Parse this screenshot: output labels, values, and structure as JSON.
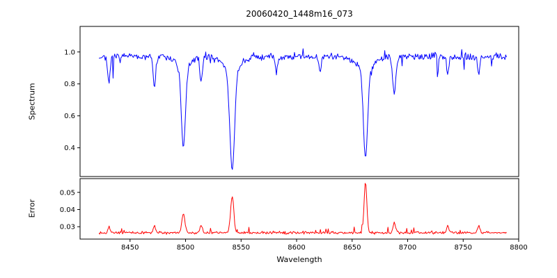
{
  "chart_data": {
    "type": "line",
    "title": "20060420_1448m16_073",
    "xlabel": "Wavelength",
    "xlim": [
      8405,
      8800
    ],
    "x_range_data": [
      8422,
      8789
    ],
    "xticks": [
      8450,
      8500,
      8550,
      8600,
      8650,
      8700,
      8750,
      8800
    ],
    "xtick_labels": [
      "8450",
      "8500",
      "8550",
      "8600",
      "8650",
      "8700",
      "8750",
      "8800"
    ],
    "grid": false,
    "legend": "none",
    "panels": [
      {
        "name": "spectrum",
        "ylabel": "Spectrum",
        "color": "#0000ff",
        "ylim": [
          0.22,
          1.16
        ],
        "yticks": [
          0.4,
          0.6,
          0.8,
          1.0
        ],
        "ytick_labels": [
          "0.4",
          "0.6",
          "0.8",
          "1.0"
        ],
        "continuum": 0.97,
        "noise_amplitude": 0.033,
        "absorption_lines": [
          {
            "center": 8431,
            "min": 0.8,
            "width": 1.5
          },
          {
            "center": 8472,
            "min": 0.78,
            "width": 1.6
          },
          {
            "center": 8498,
            "min": 0.43,
            "width": 2.6
          },
          {
            "center": 8514,
            "min": 0.81,
            "width": 1.5
          },
          {
            "center": 8542,
            "min": 0.285,
            "width": 3.0
          },
          {
            "center": 8582,
            "min": 0.87,
            "width": 1.3
          },
          {
            "center": 8621,
            "min": 0.87,
            "width": 1.3
          },
          {
            "center": 8662,
            "min": 0.37,
            "width": 2.8
          },
          {
            "center": 8688,
            "min": 0.74,
            "width": 2.0
          },
          {
            "center": 8736,
            "min": 0.87,
            "width": 1.4
          },
          {
            "center": 8764,
            "min": 0.86,
            "width": 1.4
          }
        ]
      },
      {
        "name": "error",
        "ylabel": "Error",
        "color": "#ff0000",
        "ylim": [
          0.0228,
          0.058
        ],
        "yticks": [
          0.03,
          0.04,
          0.05
        ],
        "ytick_labels": [
          "0.03",
          "0.04",
          "0.05"
        ],
        "baseline": 0.0265,
        "noise_amplitude": 0.0011,
        "peaks": [
          {
            "center": 8431,
            "max": 0.0302,
            "width": 1.4
          },
          {
            "center": 8472,
            "max": 0.0305,
            "width": 1.5
          },
          {
            "center": 8498,
            "max": 0.0375,
            "width": 2.0
          },
          {
            "center": 8514,
            "max": 0.0308,
            "width": 1.5
          },
          {
            "center": 8542,
            "max": 0.048,
            "width": 2.0
          },
          {
            "center": 8662,
            "max": 0.0555,
            "width": 1.8
          },
          {
            "center": 8688,
            "max": 0.033,
            "width": 1.6
          },
          {
            "center": 8736,
            "max": 0.0302,
            "width": 1.4
          },
          {
            "center": 8764,
            "max": 0.0303,
            "width": 1.4
          }
        ]
      }
    ]
  }
}
